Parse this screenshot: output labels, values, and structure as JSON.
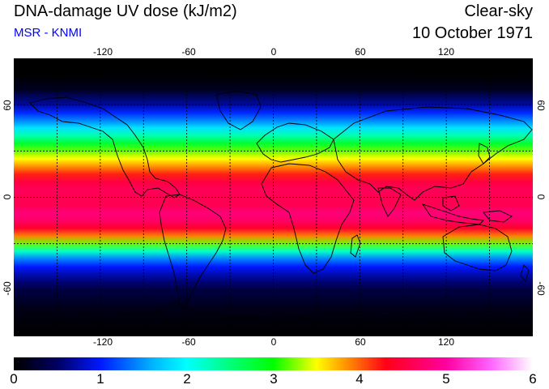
{
  "header": {
    "title": "DNA-damage UV dose (kJ/m2)",
    "subtitle": "MSR - KNMI",
    "sky_condition": "Clear-sky",
    "date": "10 October 1971"
  },
  "map": {
    "projection": "equirectangular",
    "lon_range": [
      -180,
      180
    ],
    "lat_range": [
      -90,
      90
    ],
    "grid": "dashed black lines every 30 degrees",
    "lon_ticks": [
      "-120",
      "-60",
      "0",
      "60",
      "120"
    ],
    "lat_ticks": [
      "60",
      "0",
      "-60"
    ],
    "coastlines": true
  },
  "chart_data": {
    "type": "heatmap",
    "title": "DNA-damage UV dose (kJ/m2)",
    "xlim": [
      -180,
      180
    ],
    "ylim": [
      -90,
      90
    ],
    "zonal_profile": {
      "lat": [
        90,
        80,
        70,
        60,
        55,
        50,
        45,
        40,
        35,
        30,
        25,
        20,
        15,
        10,
        5,
        0,
        -5,
        -10,
        -15,
        -20,
        -25,
        -30,
        -35,
        -40,
        -45,
        -50,
        -55,
        -60,
        -70,
        -80,
        -90
      ],
      "dose": [
        0.0,
        0.0,
        0.15,
        0.7,
        1.05,
        1.4,
        1.85,
        2.3,
        2.8,
        3.2,
        3.5,
        3.85,
        4.2,
        4.5,
        4.65,
        4.6,
        4.6,
        4.8,
        4.7,
        4.4,
        3.9,
        3.2,
        2.2,
        1.4,
        1.0,
        0.75,
        0.55,
        0.35,
        0.15,
        0.05,
        0.0
      ]
    },
    "colorbar": {
      "min": 0,
      "max": 6,
      "labels": [
        "0",
        "1",
        "2",
        "3",
        "4",
        "5",
        "6"
      ],
      "stops": [
        {
          "value": 0.0,
          "color": "#000000"
        },
        {
          "value": 0.5,
          "color": "#000060"
        },
        {
          "value": 1.0,
          "color": "#0018ff"
        },
        {
          "value": 1.6,
          "color": "#00b4ff"
        },
        {
          "value": 2.0,
          "color": "#00ffff"
        },
        {
          "value": 2.5,
          "color": "#00ff7a"
        },
        {
          "value": 3.0,
          "color": "#00ff00"
        },
        {
          "value": 3.5,
          "color": "#ffff00"
        },
        {
          "value": 3.8,
          "color": "#ffa000"
        },
        {
          "value": 4.3,
          "color": "#ff0018"
        },
        {
          "value": 5.0,
          "color": "#ff00a0"
        },
        {
          "value": 5.5,
          "color": "#ff60ff"
        },
        {
          "value": 6.0,
          "color": "#ffffff"
        }
      ]
    }
  },
  "colors": {
    "subtitle": "#0000ff"
  }
}
